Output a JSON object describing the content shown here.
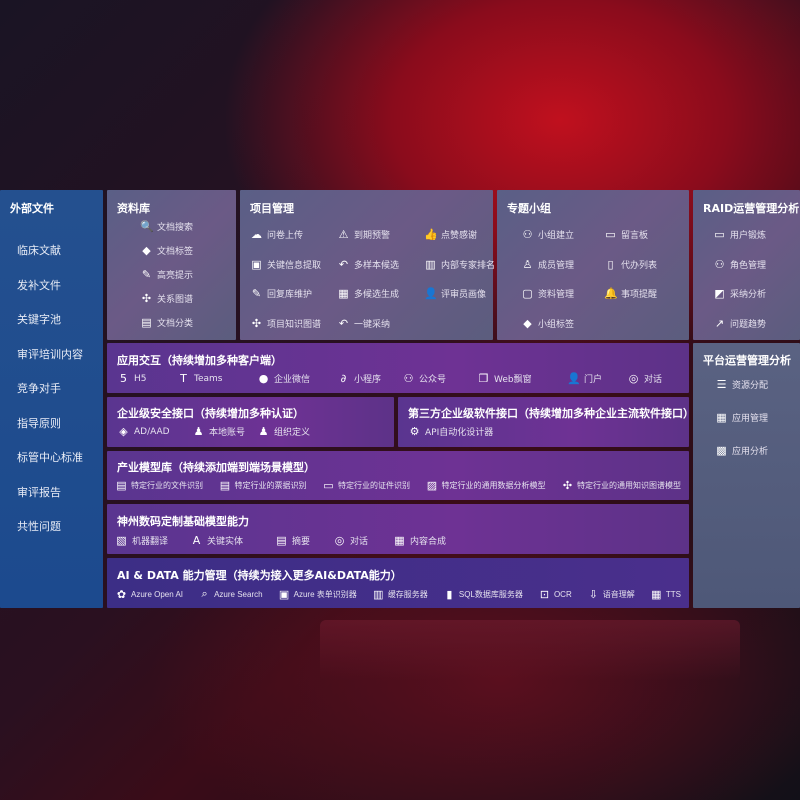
{
  "sidebar": {
    "title": "外部文件",
    "items": [
      "临床文献",
      "发补文件",
      "关键字池",
      "审评培训内容",
      "竞争对手",
      "指导原则",
      "标管中心标准",
      "审评报告",
      "共性问题"
    ]
  },
  "library": {
    "title": "资料库",
    "items": [
      {
        "icon": "doc-search-icon",
        "label": "文档搜索"
      },
      {
        "icon": "tag-icon",
        "label": "文档标签"
      },
      {
        "icon": "pen-icon",
        "label": "高亮提示"
      },
      {
        "icon": "graph-icon",
        "label": "关系图谱"
      },
      {
        "icon": "doc-category-icon",
        "label": "文档分类"
      }
    ]
  },
  "project": {
    "title": "项目管理",
    "items": [
      {
        "icon": "cloud-upload-icon",
        "label": "问卷上传"
      },
      {
        "icon": "alarm-icon",
        "label": "到期预警"
      },
      {
        "icon": "thumbs-up-icon",
        "label": "点赞感谢"
      },
      {
        "icon": "extract-icon",
        "label": "关键信息提取"
      },
      {
        "icon": "reply-icon",
        "label": "多样本候选"
      },
      {
        "icon": "ranking-icon",
        "label": "内部专家排名"
      },
      {
        "icon": "edit-icon",
        "label": "回复库维护"
      },
      {
        "icon": "puzzle-icon",
        "label": "多候选生成"
      },
      {
        "icon": "user-icon",
        "label": "评审员画像"
      },
      {
        "icon": "graph-icon",
        "label": "项目知识图谱"
      },
      {
        "icon": "reply-icon",
        "label": "一键采纳"
      }
    ]
  },
  "group": {
    "title": "专题小组",
    "items": [
      {
        "icon": "users-icon",
        "label": "小组建立"
      },
      {
        "icon": "bbs-icon",
        "label": "留言板"
      },
      {
        "icon": "user-add-icon",
        "label": "成员管理"
      },
      {
        "icon": "clipboard-icon",
        "label": "代办列表"
      },
      {
        "icon": "folder-icon",
        "label": "资料管理"
      },
      {
        "icon": "bell-icon",
        "label": "事项提醒"
      },
      {
        "icon": "tag-icon",
        "label": "小组标签"
      }
    ]
  },
  "raid": {
    "title": "RAID运营管理分析",
    "items": [
      {
        "icon": "id-card-icon",
        "label": "用户锻炼"
      },
      {
        "icon": "users-icon",
        "label": "角色管理"
      },
      {
        "icon": "qa-icon",
        "label": "采纳分析"
      },
      {
        "icon": "trend-icon",
        "label": "问题趋势"
      }
    ]
  },
  "app": {
    "title": "应用交互（持续增加多种客户端）",
    "items": [
      {
        "icon": "html5-icon",
        "label": "H5"
      },
      {
        "icon": "teams-icon",
        "label": "Teams"
      },
      {
        "icon": "wechat-work-icon",
        "label": "企业微信"
      },
      {
        "icon": "mini-program-icon",
        "label": "小程序"
      },
      {
        "icon": "official-account-icon",
        "label": "公众号"
      },
      {
        "icon": "window-icon",
        "label": "Web飘窗"
      },
      {
        "icon": "portal-icon",
        "label": "门户"
      },
      {
        "icon": "chat-icon",
        "label": "对话"
      }
    ]
  },
  "security": {
    "title": "企业级安全接口（持续增加多种认证）",
    "items": [
      {
        "icon": "ad-icon",
        "label": "AD/AAD"
      },
      {
        "icon": "local-account-icon",
        "label": "本地账号"
      },
      {
        "icon": "org-icon",
        "label": "组织定义"
      }
    ]
  },
  "thirdparty": {
    "title": "第三方企业级软件接口（持续增加多种企业主流软件接口）",
    "items": [
      {
        "icon": "api-gear-icon",
        "label": "API自动化设计器"
      }
    ]
  },
  "industry": {
    "title": "产业模型库（持续添加端到端场景模型）",
    "items": [
      {
        "icon": "file-icon",
        "label": "特定行业的文件识别"
      },
      {
        "icon": "receipt-icon",
        "label": "特定行业的票据识别"
      },
      {
        "icon": "id-card-icon",
        "label": "特定行业的证件识别"
      },
      {
        "icon": "chart-icon",
        "label": "特定行业的通用数据分析模型"
      },
      {
        "icon": "graph-icon",
        "label": "特定行业的通用知识图谱模型"
      }
    ]
  },
  "base": {
    "title": "神州数码定制基础模型能力",
    "items": [
      {
        "icon": "translate-icon",
        "label": "机器翻译"
      },
      {
        "icon": "entity-icon",
        "label": "关键实体"
      },
      {
        "icon": "summary-icon",
        "label": "摘要"
      },
      {
        "icon": "chat-icon",
        "label": "对话"
      },
      {
        "icon": "compose-icon",
        "label": "内容合成"
      }
    ]
  },
  "ai": {
    "title": "AI & DATA 能力管理（持续为接入更多AI&DATA能力）",
    "items": [
      {
        "icon": "openai-icon",
        "label": "Azure Open AI"
      },
      {
        "icon": "search-icon",
        "label": "Azure Search"
      },
      {
        "icon": "form-recognizer-icon",
        "label": "Azure 表单识别器"
      },
      {
        "icon": "cache-icon",
        "label": "缓存服务器"
      },
      {
        "icon": "sql-icon",
        "label": "SQL数据库服务器"
      },
      {
        "icon": "ocr-icon",
        "label": "OCR"
      },
      {
        "icon": "speech-icon",
        "label": "语音理解"
      },
      {
        "icon": "tts-icon",
        "label": "TTS"
      }
    ]
  },
  "platform": {
    "title": "平台运营管理分析",
    "items": [
      {
        "icon": "checklist-icon",
        "label": "资源分配"
      },
      {
        "icon": "apps-icon",
        "label": "应用管理"
      },
      {
        "icon": "analytics-icon",
        "label": "应用分析"
      }
    ]
  }
}
